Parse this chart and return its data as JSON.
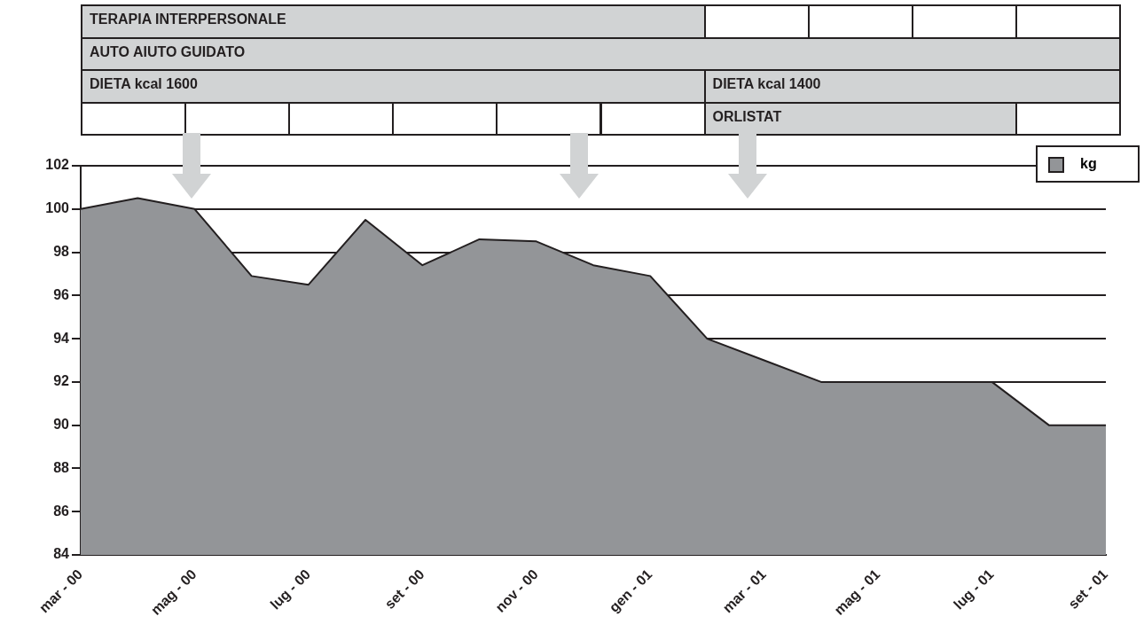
{
  "chart_data": {
    "type": "area",
    "categories": [
      "mar - 00",
      null,
      "mag - 00",
      null,
      "lug - 00",
      null,
      "set - 00",
      null,
      "nov - 00",
      null,
      "gen - 01",
      null,
      "mar - 01",
      null,
      "mag - 01",
      null,
      "lug - 01",
      null,
      "set - 01"
    ],
    "series": [
      {
        "name": "kg",
        "color": "#939598",
        "values": [
          100,
          100.5,
          100,
          96.9,
          96.5,
          99.5,
          97.4,
          98.6,
          98.5,
          97.4,
          96.9,
          94,
          93,
          92,
          92,
          92,
          92,
          90,
          90
        ]
      }
    ],
    "ylim": [
      84,
      102
    ],
    "yticks": [
      84,
      86,
      88,
      90,
      92,
      94,
      96,
      98,
      100,
      102
    ],
    "grid": "y",
    "legend": "top right",
    "annotations": [
      "TERAPIA INTERPERSONALE",
      "AUTO AIUTO GUIDATO",
      "DIETA kcal 1600",
      "DIETA kcal 1400",
      "ORLISTAT"
    ]
  }
}
